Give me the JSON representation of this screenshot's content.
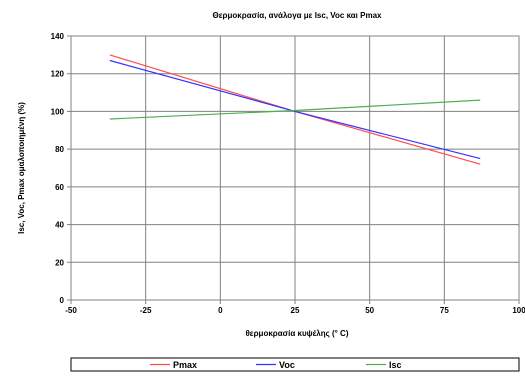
{
  "chart_data": {
    "type": "line",
    "title": "Θερμοκρασία, ανάλογα με Isc, Voc και Pmax",
    "xlabel": "θερμοκρασία κυψέλης (° C)",
    "ylabel": "Isc, Voc, Pmax ομαλοποιημένη (%)",
    "xlim": [
      -50,
      100
    ],
    "ylim": [
      0,
      140
    ],
    "xticks": [
      "-50",
      "-25",
      "0",
      "25",
      "50",
      "75",
      "100"
    ],
    "yticks": [
      "0",
      "20",
      "40",
      "60",
      "80",
      "100",
      "120",
      "140"
    ],
    "grid": true,
    "legend_position": "bottom",
    "series": [
      {
        "name": "Pmax",
        "color": "#ff4d4d",
        "x": [
          -37,
          25,
          87
        ],
        "y": [
          130,
          100,
          72
        ]
      },
      {
        "name": "Voc",
        "color": "#3333ff",
        "x": [
          -37,
          25,
          87
        ],
        "y": [
          127,
          100,
          75
        ]
      },
      {
        "name": "Isc",
        "color": "#4caf50",
        "x": [
          -37,
          25,
          87
        ],
        "y": [
          96,
          100.5,
          106
        ]
      }
    ]
  }
}
